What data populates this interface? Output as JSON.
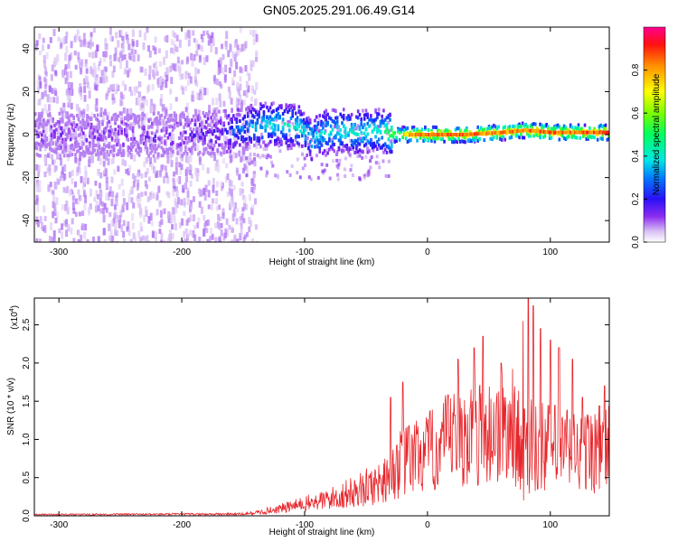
{
  "title": "GN05.2025.291.06.49.G14",
  "chart_data": [
    {
      "type": "heatmap",
      "xlabel": "Height of straight line (km)",
      "ylabel": "Frequency (Hz)",
      "xlim": [
        -320,
        148
      ],
      "ylim": [
        -50,
        50
      ],
      "xticks": [
        -300,
        -200,
        -100,
        0,
        100
      ],
      "xtick_labels": [
        "-300",
        "-200",
        "-100",
        "0",
        "100"
      ],
      "yticks": [
        -40,
        -20,
        0,
        20,
        40
      ],
      "ytick_labels": [
        "-40",
        "-20",
        "0",
        "20",
        "40"
      ],
      "colorbar": {
        "label": "Normalized spectral amplitude",
        "range": [
          0,
          1
        ],
        "ticks": [
          0.0,
          0.2,
          0.4,
          0.6,
          0.8
        ],
        "tick_labels": [
          "0.0",
          "0.2",
          "0.4",
          "0.6",
          "0.8"
        ]
      },
      "ridge": {
        "x": [
          -320,
          -250,
          -200,
          -170,
          -150,
          -130,
          -120,
          -105,
          -95,
          -85,
          -70,
          -55,
          -40,
          -30,
          -20,
          0,
          30,
          60,
          80,
          100,
          120,
          148
        ],
        "frequency": [
          0,
          0,
          0,
          1,
          3,
          5,
          5,
          3,
          -2,
          1,
          2,
          1,
          2,
          0,
          0,
          0,
          0,
          1,
          2,
          1,
          1,
          1
        ],
        "amplitude": [
          0.1,
          0.12,
          0.12,
          0.18,
          0.3,
          0.4,
          0.42,
          0.4,
          0.38,
          0.4,
          0.42,
          0.42,
          0.4,
          0.55,
          0.75,
          0.85,
          0.85,
          0.8,
          0.85,
          0.85,
          0.82,
          0.9
        ]
      }
    },
    {
      "type": "line",
      "xlabel": "Height of straight line (km)",
      "ylabel": "SNR (10 * v/v)",
      "y_multiplier_label": "(x10",
      "y_multiplier_exp": "4",
      "xlim": [
        -320,
        148
      ],
      "ylim": [
        0,
        2.85
      ],
      "xticks": [
        -300,
        -200,
        -100,
        0,
        100
      ],
      "xtick_labels": [
        "-300",
        "-200",
        "-100",
        "0",
        "100"
      ],
      "yticks": [
        0,
        0.5,
        1.0,
        1.5,
        2.0,
        2.5
      ],
      "ytick_labels": [
        "0.0",
        "0.5",
        "1.0",
        "1.5",
        "2.0",
        "2.5"
      ],
      "color": "#e8262b",
      "envelope_x": [
        -320,
        -150,
        -140,
        -120,
        -100,
        -80,
        -60,
        -40,
        -30,
        -20,
        -10,
        0,
        10,
        20,
        30,
        40,
        50,
        60,
        70,
        75,
        80,
        85,
        90,
        100,
        110,
        120,
        130,
        140,
        148
      ],
      "envelope_y": [
        0.02,
        0.03,
        0.05,
        0.12,
        0.2,
        0.28,
        0.4,
        0.55,
        0.75,
        0.9,
        1.0,
        1.05,
        1.15,
        1.3,
        1.35,
        1.4,
        1.4,
        1.45,
        1.5,
        1.3,
        1.15,
        1.2,
        1.2,
        1.15,
        1.15,
        1.1,
        1.1,
        1.15,
        1.15
      ],
      "peaks": [
        [
          -30,
          1.55
        ],
        [
          -20,
          1.75
        ],
        [
          25,
          2.05
        ],
        [
          38,
          2.2
        ],
        [
          45,
          2.35
        ],
        [
          60,
          2.0
        ],
        [
          78,
          2.55
        ],
        [
          82,
          2.85
        ],
        [
          86,
          2.75
        ],
        [
          92,
          2.45
        ],
        [
          100,
          2.3
        ],
        [
          107,
          2.2
        ],
        [
          118,
          2.05
        ],
        [
          126,
          1.55
        ],
        [
          144,
          1.7
        ]
      ]
    }
  ]
}
